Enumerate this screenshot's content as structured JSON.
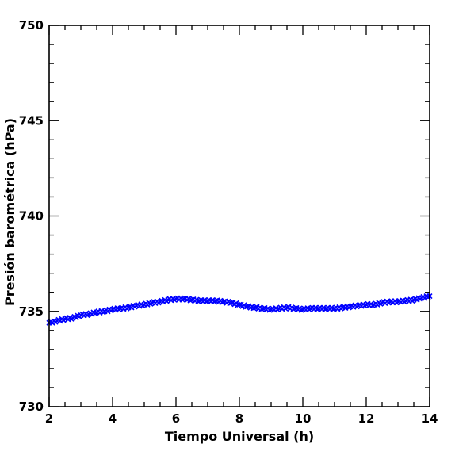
{
  "chart_data": {
    "type": "scatter",
    "title": "",
    "xlabel": "Tiempo Universal (h)",
    "ylabel": "Presión barométrica (hPa)",
    "xlim": [
      2,
      14
    ],
    "ylim": [
      730,
      750
    ],
    "x_ticks": [
      "2",
      "4",
      "6",
      "8",
      "10",
      "12",
      "14"
    ],
    "y_ticks": [
      "730",
      "735",
      "740",
      "745",
      "750"
    ],
    "grid": false,
    "legend": "none",
    "marker": "x",
    "series": [
      {
        "color": "#0000ff",
        "x": [
          2.0,
          2.25,
          2.5,
          2.75,
          3.0,
          3.25,
          3.5,
          3.75,
          4.0,
          4.25,
          4.5,
          4.75,
          5.0,
          5.25,
          5.5,
          5.75,
          6.0,
          6.25,
          6.5,
          6.75,
          7.0,
          7.25,
          7.5,
          7.75,
          8.0,
          8.25,
          8.5,
          8.75,
          9.0,
          9.25,
          9.5,
          9.75,
          10.0,
          10.25,
          10.5,
          10.75,
          11.0,
          11.25,
          11.5,
          11.75,
          12.0,
          12.25,
          12.5,
          12.75,
          13.0,
          13.25,
          13.5,
          13.75,
          14.0
        ],
        "y": [
          734.4,
          734.5,
          734.6,
          734.65,
          734.8,
          734.85,
          734.95,
          735.0,
          735.1,
          735.15,
          735.2,
          735.3,
          735.35,
          735.45,
          735.5,
          735.6,
          735.65,
          735.65,
          735.6,
          735.55,
          735.55,
          735.55,
          735.5,
          735.45,
          735.35,
          735.25,
          735.2,
          735.15,
          735.1,
          735.15,
          735.2,
          735.15,
          735.1,
          735.15,
          735.15,
          735.15,
          735.15,
          735.2,
          735.25,
          735.3,
          735.35,
          735.35,
          735.45,
          735.5,
          735.5,
          735.55,
          735.6,
          735.7,
          735.8
        ]
      }
    ]
  }
}
